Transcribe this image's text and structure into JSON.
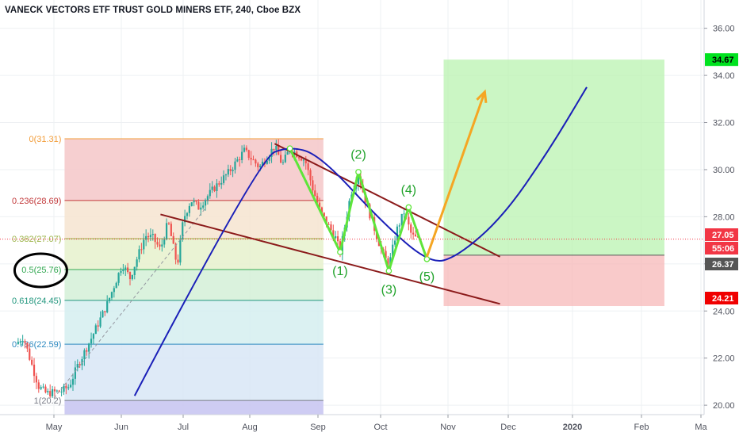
{
  "title": "VANECK VECTORS ETF TRUST GOLD MINERS ETF, 240, Cboe BZX",
  "chart_data": {
    "type": "candlestick",
    "y_range": [
      19.6,
      37.2
    ],
    "y_ticks": [
      "20.00",
      "22.00",
      "24.00",
      "26.00",
      "28.00",
      "30.00",
      "32.00",
      "34.00",
      "36.00"
    ],
    "x_labels": [
      "May",
      "Jun",
      "Jul",
      "Aug",
      "Sep",
      "Oct",
      "Nov",
      "Dec",
      "2020",
      "Feb",
      "Ma"
    ],
    "price_badges": [
      {
        "text": "34.67",
        "value": 34.67,
        "bg": "#00e21f",
        "fg": "#000000"
      },
      {
        "text": "27.05",
        "value": 27.05,
        "bg": "#f23645",
        "fg": "#ffffff"
      },
      {
        "text": "55:06",
        "value": 26.72,
        "bg": "#f23645",
        "fg": "#ffffff"
      },
      {
        "text": "26.37",
        "value": 26.37,
        "bg": "#555555",
        "fg": "#ffffff"
      },
      {
        "text": "24.21",
        "value": 24.21,
        "bg": "#f00000",
        "fg": "#ffffff"
      }
    ],
    "fib_levels": [
      {
        "label": "0(31.31)",
        "value": 31.31,
        "color": "#f29c38"
      },
      {
        "label": "0.236(28.69)",
        "value": 28.69,
        "color": "#c2393a"
      },
      {
        "label": "0.382(27.07)",
        "value": 27.07,
        "color": "#9cb44a"
      },
      {
        "label": "0.5(25.76)",
        "value": 25.76,
        "color": "#33a852"
      },
      {
        "label": "0.618(24.45)",
        "value": 24.45,
        "color": "#21967d"
      },
      {
        "label": "0.786(22.59)",
        "value": 22.59,
        "color": "#2e8ac0"
      },
      {
        "label": "1(20.2)",
        "value": 20.2,
        "color": "#787b86"
      }
    ],
    "wave_labels": [
      "(1)",
      "(2)",
      "(3)",
      "(4)",
      "(5)"
    ],
    "wave_points": [
      [
        18,
        30.9
      ],
      [
        21.3,
        26.5
      ],
      [
        22.5,
        29.9
      ],
      [
        24.5,
        25.7
      ],
      [
        25.8,
        28.4
      ],
      [
        27,
        26.2
      ]
    ],
    "price_path": [
      [
        0,
        22.6
      ],
      [
        0.5,
        22.9
      ],
      [
        1,
        21.8
      ],
      [
        1.5,
        20.8
      ],
      [
        2,
        20.5
      ],
      [
        3,
        20.6
      ],
      [
        3.5,
        20.8
      ],
      [
        4,
        21.6
      ],
      [
        5,
        22.9
      ],
      [
        6,
        24.3
      ],
      [
        7,
        26.0
      ],
      [
        7.5,
        25.4
      ],
      [
        8,
        26.3
      ],
      [
        8.5,
        27.2
      ],
      [
        9,
        27.1
      ],
      [
        9.5,
        26.6
      ],
      [
        10,
        27.8
      ],
      [
        10.6,
        25.9
      ],
      [
        11,
        27.9
      ],
      [
        11.5,
        28.7
      ],
      [
        12,
        28.4
      ],
      [
        13,
        29.2
      ],
      [
        14,
        29.9
      ],
      [
        15,
        30.8
      ],
      [
        16,
        30.1
      ],
      [
        17,
        31.0
      ],
      [
        17.5,
        30.2
      ],
      [
        18,
        30.9
      ],
      [
        19,
        30.4
      ],
      [
        19.5,
        29.2
      ],
      [
        20,
        28.2
      ],
      [
        21,
        27.1
      ],
      [
        21.3,
        26.5
      ],
      [
        22,
        29.0
      ],
      [
        22.5,
        29.8
      ],
      [
        23,
        28.6
      ],
      [
        23.5,
        27.6
      ],
      [
        24,
        26.6
      ],
      [
        24.5,
        25.9
      ],
      [
        25,
        27.4
      ],
      [
        25.5,
        28.2
      ],
      [
        26,
        27.2
      ],
      [
        26.5,
        27.0
      ]
    ],
    "bearish_channel": {
      "upper": [
        [
          17,
          31.1
        ],
        [
          31.8,
          26.3
        ]
      ],
      "lower": [
        [
          9.5,
          28.1
        ],
        [
          31.8,
          24.3
        ]
      ]
    },
    "dashed_trend": [
      [
        2.5,
        20.3
      ],
      [
        12.5,
        28.4
      ]
    ],
    "arrow": [
      [
        27,
        26.3
      ],
      [
        30.8,
        33.3
      ]
    ],
    "parabola": [
      [
        7.8,
        20.4
      ],
      [
        16,
        30.5
      ],
      [
        18,
        31.0
      ],
      [
        20,
        30.6
      ],
      [
        24,
        27.8
      ],
      [
        27.2,
        26.0
      ],
      [
        29,
        26.3
      ],
      [
        32,
        28.0
      ],
      [
        35,
        30.8
      ],
      [
        37.5,
        33.5
      ]
    ],
    "long_position": {
      "target": 34.67,
      "entry": 26.37,
      "stop": 24.21
    }
  }
}
